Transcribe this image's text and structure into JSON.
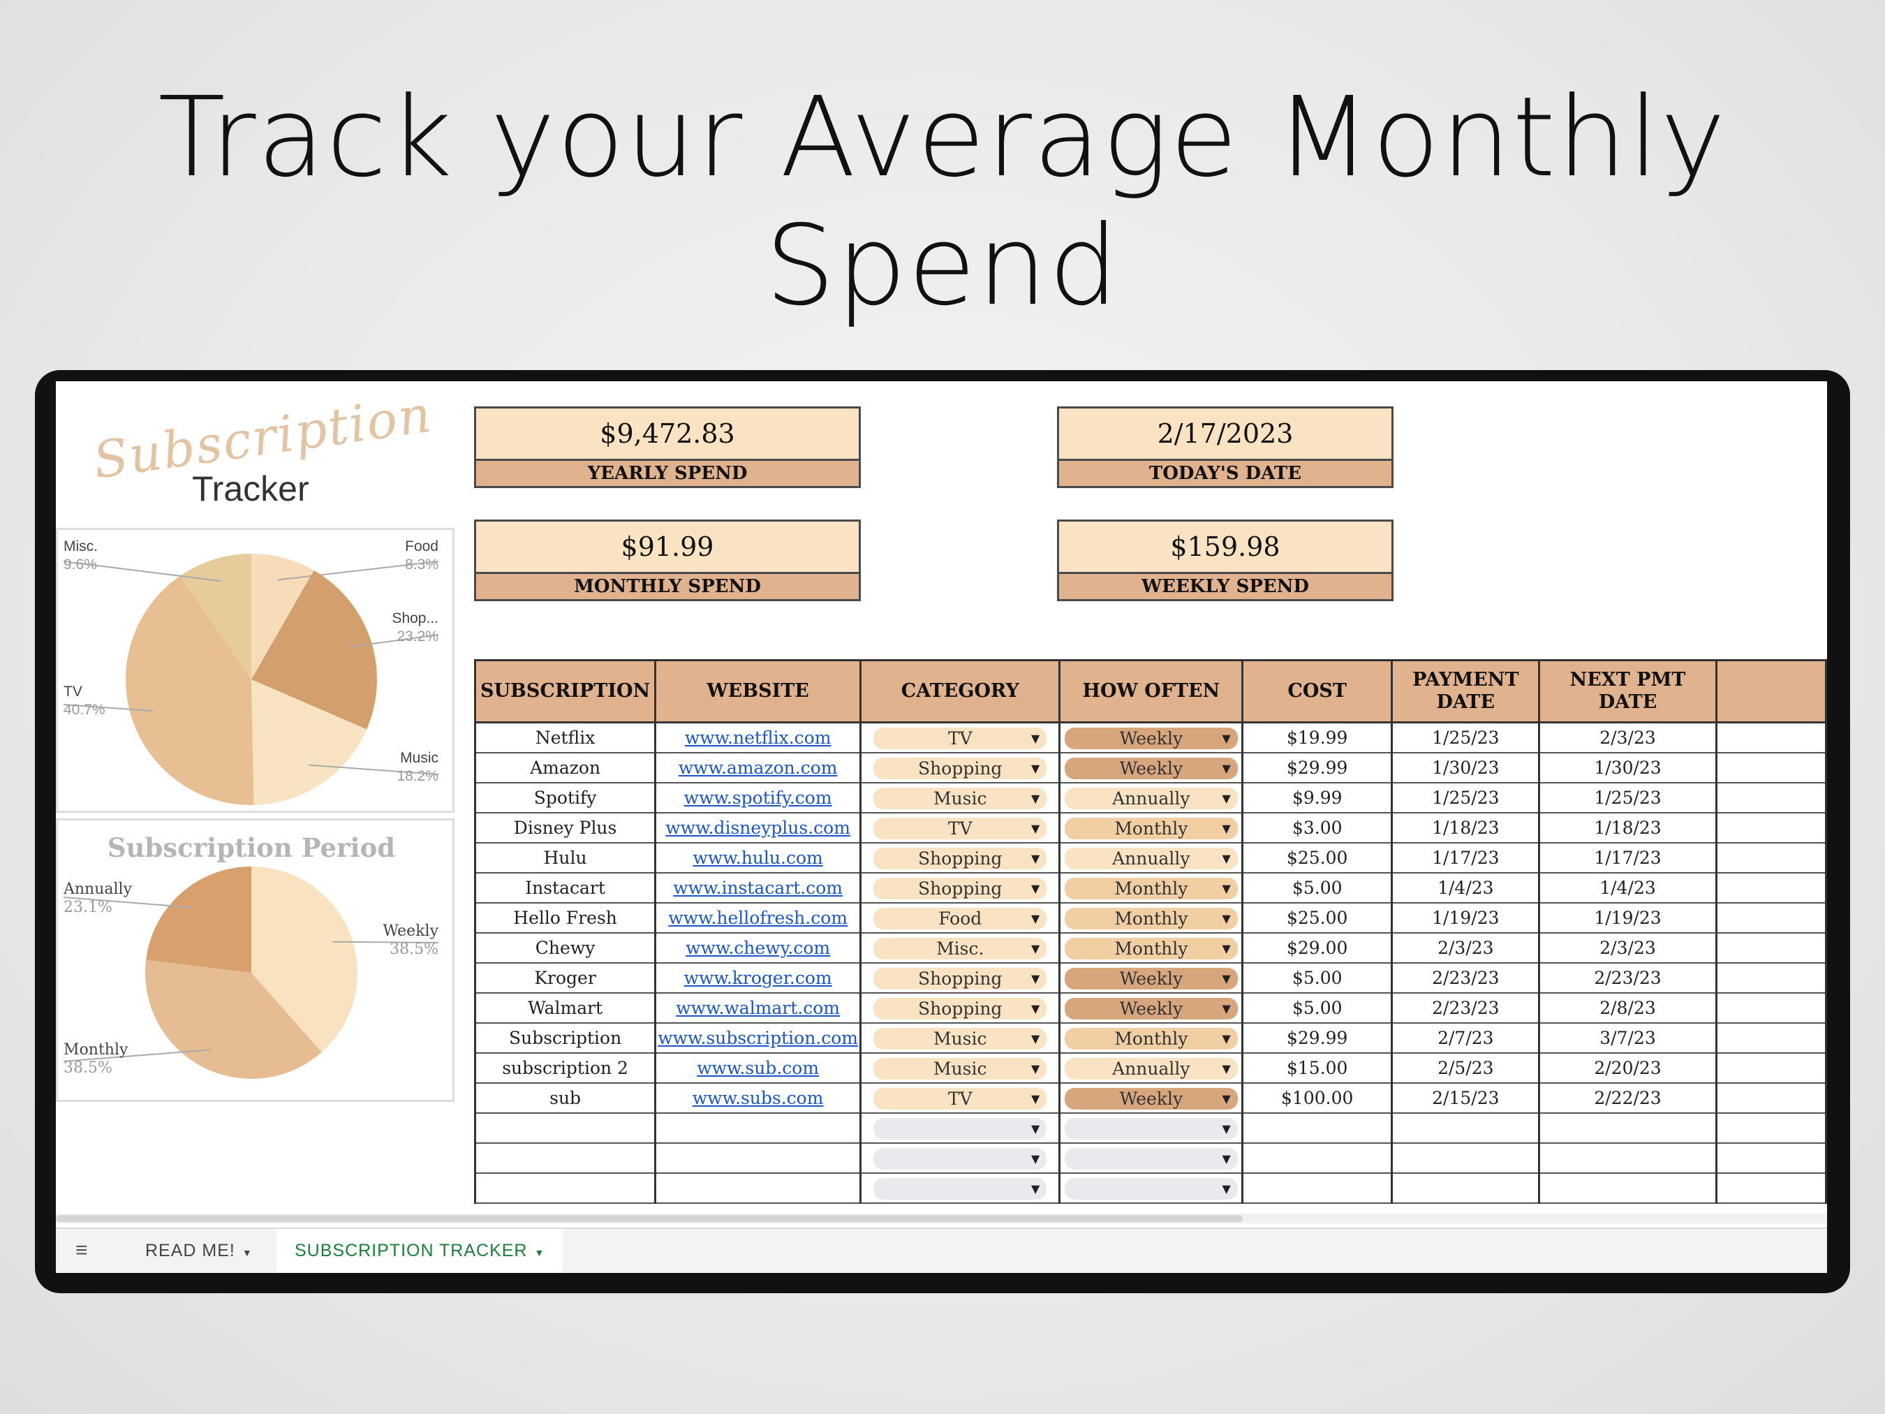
{
  "headline": "Track your Average Monthly Spend",
  "logo": {
    "script": "Subscription",
    "word": "Tracker"
  },
  "stats": [
    {
      "value": "$9,472.83",
      "label": "YEARLY SPEND"
    },
    {
      "value": "2/17/2023",
      "label": "TODAY'S DATE"
    },
    {
      "value": "$91.99",
      "label": "MONTHLY SPEND"
    },
    {
      "value": "$159.98",
      "label": "WEEKLY SPEND"
    }
  ],
  "category_chart": {
    "type": "pie",
    "slices": [
      {
        "name": "Food",
        "label": "8.3%",
        "value": 8.3,
        "color": "#f6dcb8"
      },
      {
        "name": "Shop...",
        "label": "23.2%",
        "value": 23.2,
        "color": "#d3a06d"
      },
      {
        "name": "Music",
        "label": "18.2%",
        "value": 18.2,
        "color": "#f8e4c2"
      },
      {
        "name": "TV",
        "label": "40.7%",
        "value": 40.7,
        "color": "#e8bf93"
      },
      {
        "name": "Misc.",
        "label": "9.6%",
        "value": 9.6,
        "color": "#e5cc9a"
      }
    ]
  },
  "period_chart": {
    "type": "pie",
    "title": "Subscription Period",
    "slices": [
      {
        "name": "Weekly",
        "label": "38.5%",
        "value": 38.5,
        "color": "#f8e2bf"
      },
      {
        "name": "Monthly",
        "label": "38.5%",
        "value": 38.5,
        "color": "#e6bd93"
      },
      {
        "name": "Annually",
        "label": "23.1%",
        "value": 23.1,
        "color": "#d8a06c"
      }
    ]
  },
  "table": {
    "headers": [
      "SUBSCRIPTION",
      "WEBSITE",
      "CATEGORY",
      "HOW OFTEN",
      "COST",
      "PAYMENT DATE",
      "NEXT PMT DATE",
      ""
    ],
    "rows": [
      [
        "Netflix",
        "www.netflix.com",
        "TV",
        "Weekly",
        "$19.99",
        "1/25/23",
        "2/3/23"
      ],
      [
        "Amazon",
        "www.amazon.com",
        "Shopping",
        "Weekly",
        "$29.99",
        "1/30/23",
        "1/30/23"
      ],
      [
        "Spotify",
        "www.spotify.com",
        "Music",
        "Annually",
        "$9.99",
        "1/25/23",
        "1/25/23"
      ],
      [
        "Disney Plus",
        "www.disneyplus.com",
        "TV",
        "Monthly",
        "$3.00",
        "1/18/23",
        "1/18/23"
      ],
      [
        "Hulu",
        "www.hulu.com",
        "Shopping",
        "Annually",
        "$25.00",
        "1/17/23",
        "1/17/23"
      ],
      [
        "Instacart",
        "www.instacart.com",
        "Shopping",
        "Monthly",
        "$5.00",
        "1/4/23",
        "1/4/23"
      ],
      [
        "Hello Fresh",
        "www.hellofresh.com",
        "Food",
        "Monthly",
        "$25.00",
        "1/19/23",
        "1/19/23"
      ],
      [
        "Chewy",
        "www.chewy.com",
        "Misc.",
        "Monthly",
        "$29.00",
        "2/3/23",
        "2/3/23"
      ],
      [
        "Kroger",
        "www.kroger.com",
        "Shopping",
        "Weekly",
        "$5.00",
        "2/23/23",
        "2/23/23"
      ],
      [
        "Walmart",
        "www.walmart.com",
        "Shopping",
        "Weekly",
        "$5.00",
        "2/23/23",
        "2/8/23"
      ],
      [
        "Subscription",
        "www.subscription.com",
        "Music",
        "Monthly",
        "$29.99",
        "2/7/23",
        "3/7/23"
      ],
      [
        "subscription 2",
        "www.sub.com",
        "Music",
        "Annually",
        "$15.00",
        "2/5/23",
        "2/20/23"
      ],
      [
        "sub",
        "www.subs.com",
        "TV",
        "Weekly",
        "$100.00",
        "2/15/23",
        "2/22/23"
      ],
      [
        "",
        "",
        "",
        "",
        "",
        "",
        ""
      ],
      [
        "",
        "",
        "",
        "",
        "",
        "",
        ""
      ],
      [
        "",
        "",
        "",
        "",
        "",
        "",
        ""
      ]
    ]
  },
  "tabs": [
    {
      "label": "READ ME!"
    },
    {
      "label": "SUBSCRIPTION TRACKER"
    }
  ],
  "icons": {
    "sheets_menu": "list-icon",
    "dropdown": "caret-down-icon"
  }
}
